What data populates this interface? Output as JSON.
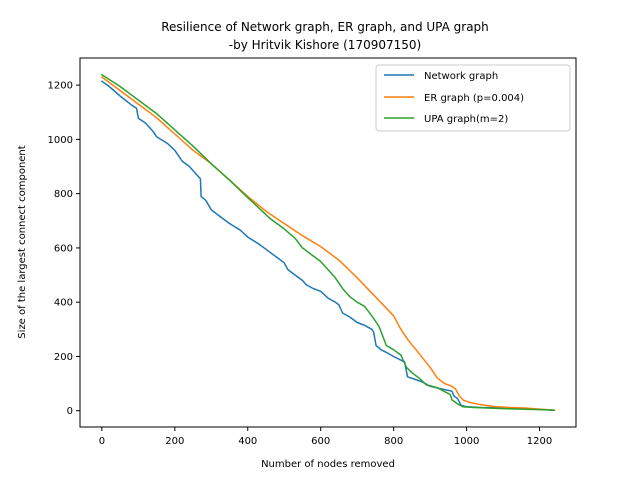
{
  "chart_data": {
    "type": "line",
    "title_line1": "Resilience of Network graph, ER graph, and UPA graph",
    "title_line2": "-by Hritvik Kishore (170907150)",
    "xlabel": "Number of nodes removed",
    "ylabel": "Size of the largest connect component",
    "xlim": [
      -60,
      1300
    ],
    "ylim": [
      -60,
      1300
    ],
    "xticks": [
      0,
      200,
      400,
      600,
      800,
      1000,
      1200
    ],
    "yticks": [
      0,
      200,
      400,
      600,
      800,
      1000,
      1200
    ],
    "legend_position": "upper right",
    "series": [
      {
        "name": "Network graph",
        "color": "#1f77b4",
        "points": [
          [
            0,
            1214
          ],
          [
            20,
            1195
          ],
          [
            50,
            1160
          ],
          [
            80,
            1128
          ],
          [
            95,
            1115
          ],
          [
            100,
            1078
          ],
          [
            120,
            1060
          ],
          [
            140,
            1030
          ],
          [
            150,
            1010
          ],
          [
            180,
            985
          ],
          [
            200,
            960
          ],
          [
            220,
            920
          ],
          [
            240,
            900
          ],
          [
            260,
            870
          ],
          [
            270,
            855
          ],
          [
            272,
            790
          ],
          [
            285,
            775
          ],
          [
            300,
            740
          ],
          [
            330,
            710
          ],
          [
            350,
            690
          ],
          [
            380,
            665
          ],
          [
            400,
            640
          ],
          [
            430,
            615
          ],
          [
            450,
            595
          ],
          [
            480,
            565
          ],
          [
            500,
            545
          ],
          [
            510,
            520
          ],
          [
            530,
            500
          ],
          [
            550,
            480
          ],
          [
            560,
            465
          ],
          [
            580,
            450
          ],
          [
            600,
            440
          ],
          [
            620,
            415
          ],
          [
            640,
            400
          ],
          [
            650,
            390
          ],
          [
            660,
            360
          ],
          [
            680,
            345
          ],
          [
            700,
            325
          ],
          [
            720,
            315
          ],
          [
            740,
            300
          ],
          [
            745,
            290
          ],
          [
            752,
            240
          ],
          [
            765,
            225
          ],
          [
            780,
            215
          ],
          [
            800,
            200
          ],
          [
            830,
            180
          ],
          [
            838,
            125
          ],
          [
            860,
            115
          ],
          [
            880,
            105
          ],
          [
            900,
            90
          ],
          [
            940,
            78
          ],
          [
            960,
            72
          ],
          [
            965,
            55
          ],
          [
            975,
            45
          ],
          [
            985,
            20
          ],
          [
            1000,
            15
          ],
          [
            1040,
            12
          ],
          [
            1100,
            10
          ],
          [
            1200,
            5
          ],
          [
            1240,
            2
          ]
        ]
      },
      {
        "name": "ER graph (p=0.004)",
        "color": "#ff7f0e",
        "points": [
          [
            0,
            1230
          ],
          [
            50,
            1180
          ],
          [
            100,
            1130
          ],
          [
            150,
            1080
          ],
          [
            200,
            1020
          ],
          [
            250,
            960
          ],
          [
            300,
            910
          ],
          [
            350,
            850
          ],
          [
            400,
            790
          ],
          [
            450,
            735
          ],
          [
            500,
            690
          ],
          [
            550,
            645
          ],
          [
            600,
            605
          ],
          [
            650,
            555
          ],
          [
            700,
            490
          ],
          [
            750,
            420
          ],
          [
            800,
            350
          ],
          [
            820,
            300
          ],
          [
            840,
            260
          ],
          [
            870,
            210
          ],
          [
            900,
            160
          ],
          [
            920,
            120
          ],
          [
            940,
            100
          ],
          [
            960,
            90
          ],
          [
            970,
            80
          ],
          [
            980,
            55
          ],
          [
            990,
            40
          ],
          [
            1010,
            30
          ],
          [
            1040,
            22
          ],
          [
            1080,
            15
          ],
          [
            1120,
            12
          ],
          [
            1160,
            10
          ],
          [
            1200,
            6
          ],
          [
            1240,
            2
          ]
        ]
      },
      {
        "name": "UPA graph(m=2)",
        "color": "#2ca02c",
        "points": [
          [
            0,
            1238
          ],
          [
            50,
            1195
          ],
          [
            100,
            1145
          ],
          [
            150,
            1095
          ],
          [
            200,
            1035
          ],
          [
            250,
            975
          ],
          [
            300,
            910
          ],
          [
            350,
            850
          ],
          [
            400,
            785
          ],
          [
            440,
            735
          ],
          [
            460,
            710
          ],
          [
            500,
            670
          ],
          [
            530,
            635
          ],
          [
            550,
            600
          ],
          [
            580,
            570
          ],
          [
            600,
            550
          ],
          [
            620,
            520
          ],
          [
            640,
            490
          ],
          [
            660,
            450
          ],
          [
            680,
            420
          ],
          [
            700,
            400
          ],
          [
            720,
            385
          ],
          [
            740,
            350
          ],
          [
            760,
            310
          ],
          [
            780,
            240
          ],
          [
            800,
            225
          ],
          [
            820,
            205
          ],
          [
            835,
            160
          ],
          [
            850,
            140
          ],
          [
            870,
            120
          ],
          [
            890,
            95
          ],
          [
            920,
            85
          ],
          [
            940,
            70
          ],
          [
            955,
            60
          ],
          [
            960,
            40
          ],
          [
            975,
            25
          ],
          [
            990,
            15
          ],
          [
            1020,
            12
          ],
          [
            1100,
            8
          ],
          [
            1200,
            4
          ],
          [
            1240,
            2
          ]
        ]
      }
    ]
  }
}
